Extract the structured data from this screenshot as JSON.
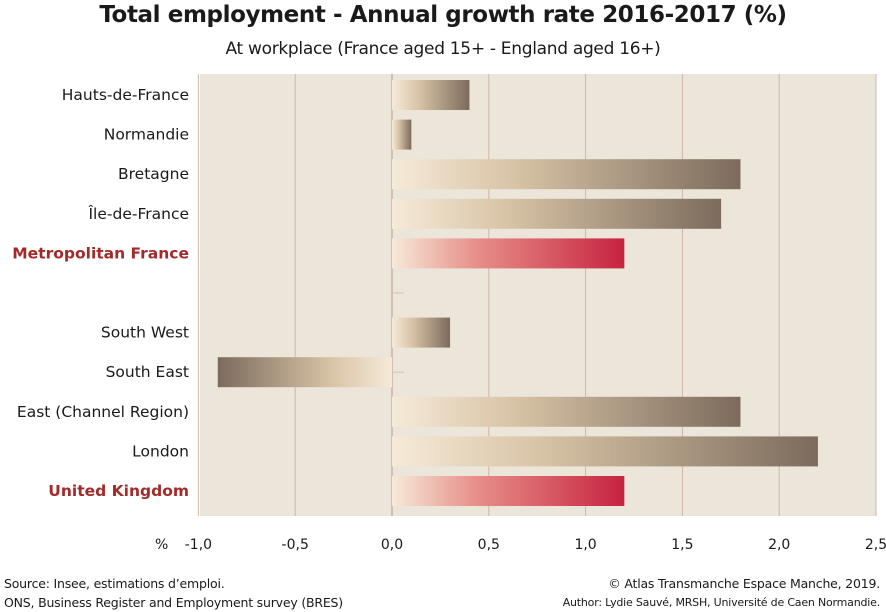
{
  "header": {
    "title": "Total employment - Annual growth rate 2016-2017 (%)",
    "subtitle": "At workplace (France aged 15+ - England aged 16+)"
  },
  "chart_data": {
    "type": "bar",
    "orientation": "horizontal",
    "title": "Total employment - Annual growth rate 2016-2017 (%)",
    "subtitle": "At workplace (France aged 15+ - England aged 16+)",
    "xlabel": "%",
    "ylabel": "",
    "xlim": [
      -1.0,
      2.5
    ],
    "xticks": [
      -1.0,
      -0.5,
      0.0,
      0.5,
      1.0,
      1.5,
      2.0,
      2.5
    ],
    "xtick_labels": [
      "-1,0",
      "-0,5",
      "0,0",
      "0,5",
      "1,0",
      "1,5",
      "2,0",
      "2,5"
    ],
    "grid": "vertical",
    "categories": [
      "Hauts-de-France",
      "Normandie",
      "Bretagne",
      "Île-de-France",
      "Metropolitan France",
      "",
      "South West",
      "South East",
      "East (Channel Region)",
      "London",
      "United Kingdom"
    ],
    "values": [
      0.4,
      0.1,
      1.8,
      1.7,
      1.2,
      null,
      0.3,
      -0.9,
      1.8,
      2.2,
      1.2
    ],
    "highlighted": [
      "Metropolitan France",
      "United Kingdom"
    ],
    "colors": {
      "background": "#ebe6d9",
      "grid": "#cfb6a6",
      "bar_start": "#f6ead8",
      "bar_mid": "#c2a98a",
      "bar_end": "#7c6b5c",
      "highlight_start": "#f6ead8",
      "highlight_mid": "#e8918b",
      "highlight_end": "#c6233f",
      "highlight_label": "#a22a2a"
    }
  },
  "footer": {
    "source_line1": "Source: Insee, estimations d’emploi.",
    "source_line2": "ONS, Business Register and Employment survey (BRES)",
    "credit_line1": "© Atlas Transmanche Espace Manche, 2019.",
    "credit_line2": "Author: Lydie Sauvé, MRSH, Université de Caen Normandie."
  }
}
